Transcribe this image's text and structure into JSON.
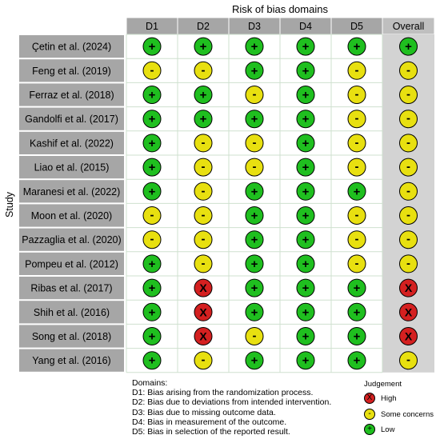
{
  "chart_data": {
    "type": "table",
    "title": "Risk of bias domains",
    "ylabel": "Study",
    "columns": [
      "D1",
      "D2",
      "D3",
      "D4",
      "D5",
      "Overall"
    ],
    "studies": [
      "Çetin et al. (2024)",
      "Feng et al. (2019)",
      "Ferraz et al. (2018)",
      "Gandolfi et al. (2017)",
      "Kashif et al. (2022)",
      "Liao et al. (2015)",
      "Maranesi et al. (2022)",
      "Moon et al. (2020)",
      "Pazzaglia et al. (2020)",
      "Pompeu et al. (2012)",
      "Ribas et al. (2017)",
      "Shih et al. (2016)",
      "Song et al. (2018)",
      "Yang et al. (2016)"
    ],
    "judgements": [
      [
        "low",
        "low",
        "low",
        "low",
        "low",
        "low"
      ],
      [
        "some",
        "some",
        "low",
        "low",
        "some",
        "some"
      ],
      [
        "low",
        "low",
        "some",
        "low",
        "some",
        "some"
      ],
      [
        "low",
        "low",
        "low",
        "low",
        "some",
        "some"
      ],
      [
        "low",
        "some",
        "some",
        "low",
        "some",
        "some"
      ],
      [
        "low",
        "some",
        "some",
        "low",
        "some",
        "some"
      ],
      [
        "low",
        "some",
        "low",
        "low",
        "low",
        "some"
      ],
      [
        "some",
        "some",
        "low",
        "low",
        "some",
        "some"
      ],
      [
        "some",
        "some",
        "low",
        "low",
        "some",
        "some"
      ],
      [
        "low",
        "some",
        "low",
        "low",
        "some",
        "some"
      ],
      [
        "low",
        "high",
        "low",
        "low",
        "low",
        "high"
      ],
      [
        "low",
        "high",
        "low",
        "low",
        "low",
        "high"
      ],
      [
        "low",
        "high",
        "some",
        "low",
        "low",
        "high"
      ],
      [
        "low",
        "some",
        "low",
        "low",
        "low",
        "some"
      ]
    ]
  },
  "symbols": {
    "low": "+",
    "some": "-",
    "high": "X"
  },
  "colors": {
    "low": "#1fbf1f",
    "some": "#e8e010",
    "high": "#d42020"
  },
  "legend": {
    "domains_title": "Domains:",
    "domains": [
      "D1: Bias arising from the randomization process.",
      "D2: Bias due to deviations from intended intervention.",
      "D3: Bias due to missing outcome data.",
      "D4: Bias in measurement of the outcome.",
      "D5: Bias in selection of the reported result."
    ],
    "judgement_title": "Judgement",
    "judgement_items": [
      {
        "key": "high",
        "label": "High"
      },
      {
        "key": "some",
        "label": "Some concerns"
      },
      {
        "key": "low",
        "label": "Low"
      }
    ]
  }
}
